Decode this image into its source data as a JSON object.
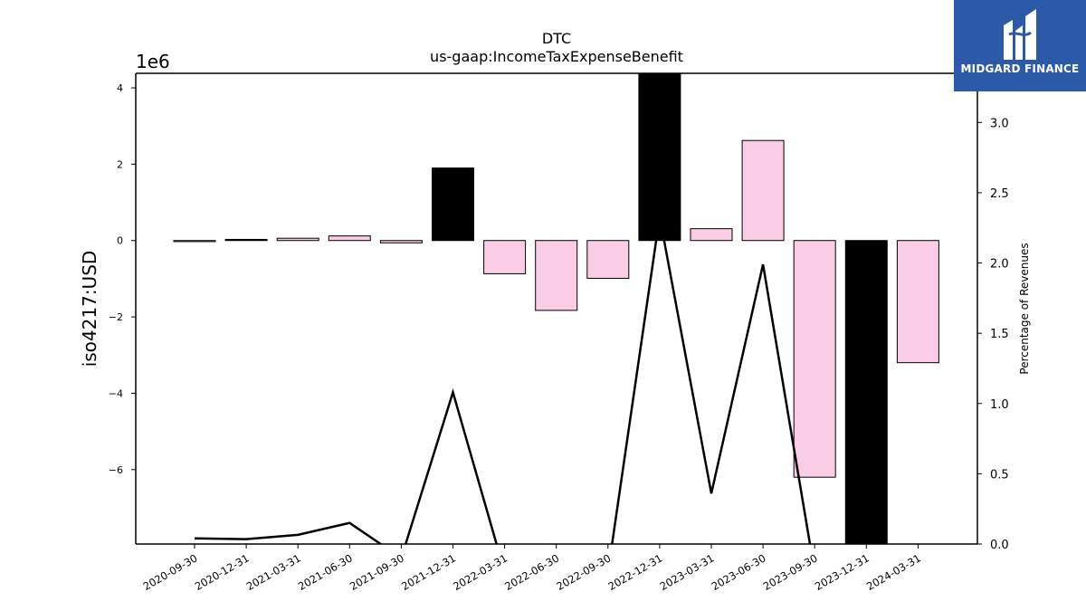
{
  "chart_data": {
    "type": "bar",
    "title": "DTC",
    "subtitle": "us-gaap:IncomeTaxExpenseBenefit",
    "ylabel": "iso4217:USD",
    "y_offset_label": "1e6",
    "y2label": "Percentage of Revenues",
    "categories": [
      "2020-09-30",
      "2020-12-31",
      "2021-03-31",
      "2021-06-30",
      "2021-09-30",
      "2021-12-31",
      "2022-03-31",
      "2022-06-30",
      "2022-09-30",
      "2022-12-31",
      "2023-03-31",
      "2023-06-30",
      "2023-09-30",
      "2023-12-31",
      "2024-03-31"
    ],
    "series": [
      {
        "values": [
          -20000,
          30000,
          60000,
          120000,
          -60000,
          1900000,
          -870000,
          -1830000,
          -990000,
          4400000,
          310000,
          2620000,
          -6200000,
          -8100000,
          -3200000
        ],
        "colors": [
          "#fbcce6",
          "#000000",
          "#fbcce6",
          "#fbcce6",
          "#fbcce6",
          "#000000",
          "#fbcce6",
          "#fbcce6",
          "#fbcce6",
          "#000000",
          "#fbcce6",
          "#fbcce6",
          "#fbcce6",
          "#000000",
          "#fbcce6"
        ]
      },
      {
        "axis": "right",
        "type": "line",
        "values": [
          0.04,
          0.035,
          0.065,
          0.15,
          -0.1,
          1.08,
          -0.2,
          null,
          -0.2,
          2.33,
          0.36,
          1.99,
          -0.2,
          null,
          null
        ]
      }
    ],
    "ylim": [
      -7.95,
      4.38
    ],
    "y_ticks": [
      4,
      2,
      0,
      -2,
      -4,
      -6
    ],
    "y_tick_labels": [
      "4",
      "2",
      "0",
      "−2",
      "−4",
      "−6"
    ],
    "y2lim": [
      0,
      3.35
    ],
    "y2_ticks": [
      0.0,
      0.5,
      1.0,
      1.5,
      2.0,
      2.5,
      3.0
    ],
    "y2_tick_labels": [
      "0.0",
      "0.5",
      "1.0",
      "1.5",
      "2.0",
      "2.5",
      "3.0"
    ],
    "colors": {
      "positive_bar": "#fbcce6",
      "highlight_bar": "#000000",
      "line": "#000000"
    }
  },
  "logo": {
    "text": "MIDGARD FINANCE",
    "background": "#2d5aa8"
  }
}
